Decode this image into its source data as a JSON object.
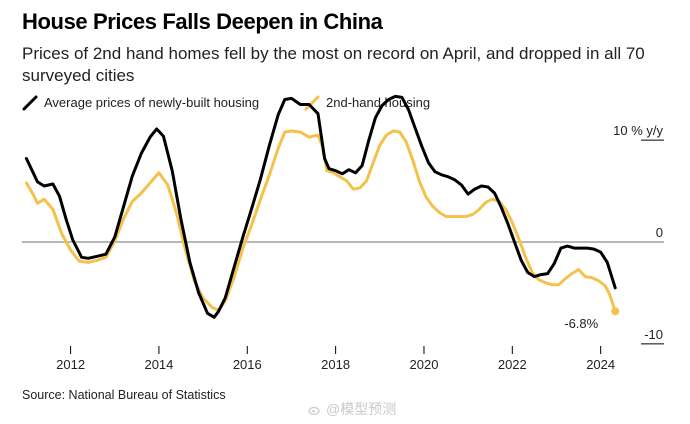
{
  "header": {
    "title": "House Prices Falls Deepen in China",
    "subtitle": "Prices of 2nd hand homes fell by the most on record on April, and dropped in all 70 surveyed cities"
  },
  "legend": [
    {
      "label": "Average prices of newly-built housing",
      "color": "#000000"
    },
    {
      "label": "2nd-hand housing",
      "color": "#f2c24b"
    }
  ],
  "footer": {
    "source": "Source: National Bureau of Statistics",
    "watermark": "@模型预测"
  },
  "chart_data": {
    "type": "line",
    "x_ticks": [
      2012,
      2014,
      2016,
      2018,
      2020,
      2022,
      2024
    ],
    "xlim": [
      2010.9,
      2024.8
    ],
    "ylim": [
      -11,
      11
    ],
    "y_ticks": [
      {
        "value": 10,
        "label": "10 % y/y"
      },
      {
        "value": 0,
        "label": "0"
      },
      {
        "value": -10,
        "label": "-10"
      }
    ],
    "zero_line": true,
    "grid": false,
    "annotation": {
      "text": "-6.8%",
      "series": 1,
      "x": 2024.33,
      "y": -6.8
    },
    "series": [
      {
        "name": "Average prices of newly-built housing",
        "color": "#000000",
        "x": [
          2011.0,
          2011.25,
          2011.4,
          2011.6,
          2011.75,
          2011.9,
          2012.05,
          2012.25,
          2012.4,
          2012.6,
          2012.8,
          2013.0,
          2013.2,
          2013.4,
          2013.6,
          2013.8,
          2013.95,
          2014.1,
          2014.3,
          2014.5,
          2014.7,
          2014.9,
          2015.1,
          2015.25,
          2015.35,
          2015.5,
          2015.7,
          2015.9,
          2016.1,
          2016.3,
          2016.5,
          2016.7,
          2016.85,
          2017.0,
          2017.2,
          2017.4,
          2017.6,
          2017.75,
          2017.85,
          2018.0,
          2018.15,
          2018.3,
          2018.45,
          2018.6,
          2018.75,
          2018.9,
          2019.05,
          2019.2,
          2019.35,
          2019.5,
          2019.65,
          2019.8,
          2019.95,
          2020.1,
          2020.25,
          2020.4,
          2020.55,
          2020.7,
          2020.85,
          2021.0,
          2021.15,
          2021.3,
          2021.45,
          2021.6,
          2021.75,
          2021.9,
          2022.05,
          2022.2,
          2022.35,
          2022.5,
          2022.65,
          2022.8,
          2022.95,
          2023.1,
          2023.25,
          2023.4,
          2023.55,
          2023.7,
          2023.85,
          2024.0,
          2024.15,
          2024.33
        ],
        "y": [
          8.2,
          5.9,
          5.5,
          5.7,
          4.5,
          2.2,
          0.2,
          -1.5,
          -1.6,
          -1.4,
          -1.2,
          0.5,
          3.5,
          6.5,
          8.7,
          10.3,
          11.1,
          10.4,
          7.0,
          2.2,
          -2.0,
          -5.0,
          -7.0,
          -7.4,
          -6.8,
          -5.5,
          -2.5,
          0.5,
          3.3,
          6.2,
          9.5,
          12.5,
          14.0,
          14.1,
          13.5,
          13.5,
          12.6,
          8.2,
          7.2,
          7.0,
          6.7,
          7.1,
          6.8,
          7.5,
          10.0,
          12.2,
          13.4,
          14.0,
          14.3,
          14.2,
          13.0,
          11.2,
          9.4,
          7.8,
          6.9,
          6.6,
          6.4,
          6.1,
          5.6,
          4.7,
          5.2,
          5.5,
          5.4,
          4.8,
          3.4,
          1.8,
          0.0,
          -1.8,
          -3.0,
          -3.4,
          -3.2,
          -3.1,
          -2.1,
          -0.6,
          -0.4,
          -0.6,
          -0.6,
          -0.6,
          -0.7,
          -1.0,
          -2.0,
          -4.5
        ]
      },
      {
        "name": "2nd-hand housing",
        "color": "#f2c24b",
        "x": [
          2011.0,
          2011.15,
          2011.25,
          2011.4,
          2011.6,
          2011.8,
          2012.0,
          2012.2,
          2012.4,
          2012.6,
          2012.8,
          2013.0,
          2013.2,
          2013.4,
          2013.6,
          2013.8,
          2014.0,
          2014.2,
          2014.4,
          2014.6,
          2014.8,
          2015.0,
          2015.2,
          2015.35,
          2015.5,
          2015.7,
          2015.9,
          2016.1,
          2016.3,
          2016.5,
          2016.7,
          2016.85,
          2017.0,
          2017.2,
          2017.4,
          2017.6,
          2017.7,
          2017.8,
          2017.95,
          2018.1,
          2018.25,
          2018.4,
          2018.55,
          2018.7,
          2018.85,
          2019.0,
          2019.15,
          2019.3,
          2019.45,
          2019.6,
          2019.75,
          2019.9,
          2020.05,
          2020.2,
          2020.35,
          2020.5,
          2020.65,
          2020.8,
          2020.95,
          2021.1,
          2021.25,
          2021.4,
          2021.55,
          2021.7,
          2021.85,
          2022.0,
          2022.15,
          2022.3,
          2022.45,
          2022.6,
          2022.75,
          2022.9,
          2023.05,
          2023.2,
          2023.35,
          2023.5,
          2023.65,
          2023.8,
          2023.95,
          2024.1,
          2024.2,
          2024.33
        ],
        "y": [
          5.8,
          4.7,
          3.8,
          4.2,
          3.2,
          0.8,
          -0.8,
          -1.9,
          -2.0,
          -1.8,
          -1.5,
          0.1,
          2.3,
          4.0,
          4.8,
          5.8,
          6.8,
          5.6,
          2.8,
          -0.8,
          -3.8,
          -5.5,
          -6.4,
          -6.7,
          -5.8,
          -3.5,
          -0.6,
          1.7,
          4.2,
          6.6,
          9.2,
          10.8,
          10.9,
          10.8,
          10.3,
          10.5,
          9.4,
          7.0,
          6.8,
          6.4,
          6.0,
          5.2,
          5.3,
          6.0,
          7.8,
          9.5,
          10.5,
          10.9,
          10.8,
          9.8,
          8.0,
          5.9,
          4.4,
          3.5,
          2.9,
          2.5,
          2.5,
          2.5,
          2.5,
          2.7,
          3.2,
          3.9,
          4.2,
          4.0,
          3.2,
          1.9,
          0.3,
          -1.5,
          -3.0,
          -3.7,
          -4.0,
          -4.2,
          -4.2,
          -3.6,
          -3.1,
          -2.7,
          -3.4,
          -3.5,
          -3.8,
          -4.3,
          -5.1,
          -6.8
        ]
      }
    ]
  }
}
